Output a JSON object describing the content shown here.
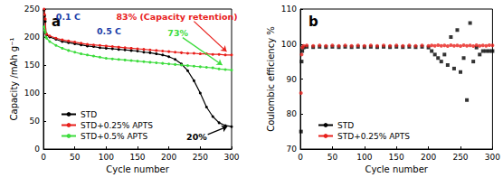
{
  "chart_data": [
    {
      "type": "line",
      "title": "a",
      "x_label": "Cycle number",
      "y_label": "Capacity /mAh g⁻¹",
      "x": [
        1,
        2,
        3,
        4,
        5,
        10,
        20,
        30,
        40,
        50,
        60,
        70,
        80,
        90,
        100,
        110,
        120,
        130,
        140,
        150,
        160,
        170,
        180,
        190,
        200,
        210,
        220,
        230,
        240,
        250,
        260,
        270,
        280,
        290,
        300
      ],
      "series": [
        {
          "name": "STD",
          "color": "#000000",
          "marker": "circle",
          "line_style": "solid",
          "values": [
            248,
            238,
            228,
            206,
            204,
            200,
            196,
            192,
            190,
            188,
            186,
            184,
            183,
            181,
            180,
            179,
            178,
            177,
            176,
            175,
            173,
            172,
            170,
            168,
            165,
            160,
            152,
            140,
            122,
            100,
            75,
            58,
            47,
            42,
            40
          ]
        },
        {
          "name": "STD+0.25% APTS",
          "color": "#e8201c",
          "marker": "circle",
          "line_style": "solid",
          "values": [
            250,
            240,
            232,
            207,
            205,
            202,
            198,
            195,
            193,
            191,
            189,
            187,
            186,
            185,
            184,
            183,
            182,
            181,
            180,
            179,
            178,
            177,
            176,
            175,
            174,
            173,
            172,
            171,
            171,
            170,
            170,
            169,
            169,
            168,
            168
          ]
        },
        {
          "name": "STD+0.5% APTS",
          "color": "#3ddc3d",
          "marker": "circle",
          "line_style": "solid",
          "values": [
            218,
            212,
            208,
            200,
            198,
            192,
            185,
            180,
            176,
            173,
            170,
            168,
            166,
            164,
            162,
            161,
            160,
            159,
            158,
            157,
            156,
            155,
            154,
            153,
            152,
            151,
            150,
            149,
            148,
            147,
            146,
            145,
            143,
            142,
            141
          ]
        }
      ],
      "annotations": [
        {
          "text": "0.1 C",
          "color": "#1a3da8"
        },
        {
          "text": "0.5 C",
          "color": "#1a3da8"
        },
        {
          "text": "83% (Capacity retention)",
          "color": "#e8201c"
        },
        {
          "text": "73%",
          "color": "#3ddc3d"
        },
        {
          "text": "20%",
          "color": "#000000"
        }
      ],
      "xlim": [
        0,
        300
      ],
      "xticks": [
        0,
        50,
        100,
        150,
        200,
        250,
        300
      ],
      "ylim": [
        0,
        250
      ],
      "yticks": [
        0,
        50,
        100,
        150,
        200,
        250
      ],
      "grid": false,
      "legend": "lower left"
    },
    {
      "type": "scatter",
      "title": "b",
      "x_label": "Cycle number",
      "y_label": "Coulombic efficiency %",
      "x": [
        1,
        2,
        3,
        5,
        10,
        20,
        30,
        40,
        50,
        60,
        70,
        80,
        90,
        100,
        110,
        120,
        130,
        140,
        150,
        160,
        170,
        180,
        190,
        200,
        205,
        210,
        215,
        220,
        225,
        230,
        235,
        240,
        245,
        250,
        255,
        260,
        265,
        270,
        275,
        280,
        285,
        290,
        295,
        300
      ],
      "series": [
        {
          "name": "STD",
          "color": "#000000",
          "marker": "square",
          "values": [
            75,
            95,
            98,
            99,
            99.2,
            99.1,
            99.2,
            99.1,
            99.2,
            99.1,
            99.2,
            99.1,
            99.2,
            99.1,
            99.2,
            99.1,
            99.2,
            99.1,
            99.2,
            99.1,
            99.2,
            99.1,
            99.2,
            99.0,
            98,
            97,
            96,
            95,
            97,
            94,
            102,
            93,
            104,
            92,
            96,
            84,
            106,
            95,
            99,
            97,
            98,
            98,
            98,
            98
          ]
        },
        {
          "name": "STD+0.25% APTS",
          "color": "#e8201c",
          "marker": "circle",
          "values": [
            86,
            97,
            99,
            99.5,
            99.6,
            99.5,
            99.6,
            99.5,
            99.6,
            99.5,
            99.6,
            99.5,
            99.6,
            99.5,
            99.6,
            99.5,
            99.6,
            99.5,
            99.6,
            99.5,
            99.6,
            99.5,
            99.6,
            99.5,
            99.6,
            99.5,
            99.7,
            99.5,
            99.6,
            99.4,
            99.7,
            99.5,
            99.6,
            99.4,
            99.7,
            99.5,
            99.6,
            99.4,
            99.7,
            99.5,
            99.6,
            99.5,
            99.7,
            99.6
          ]
        }
      ],
      "xlim": [
        0,
        300
      ],
      "xticks": [
        0,
        50,
        100,
        150,
        200,
        250,
        300
      ],
      "ylim": [
        70,
        110
      ],
      "yticks": [
        70,
        80,
        90,
        100,
        110
      ],
      "grid": false,
      "legend": "lower left"
    }
  ]
}
